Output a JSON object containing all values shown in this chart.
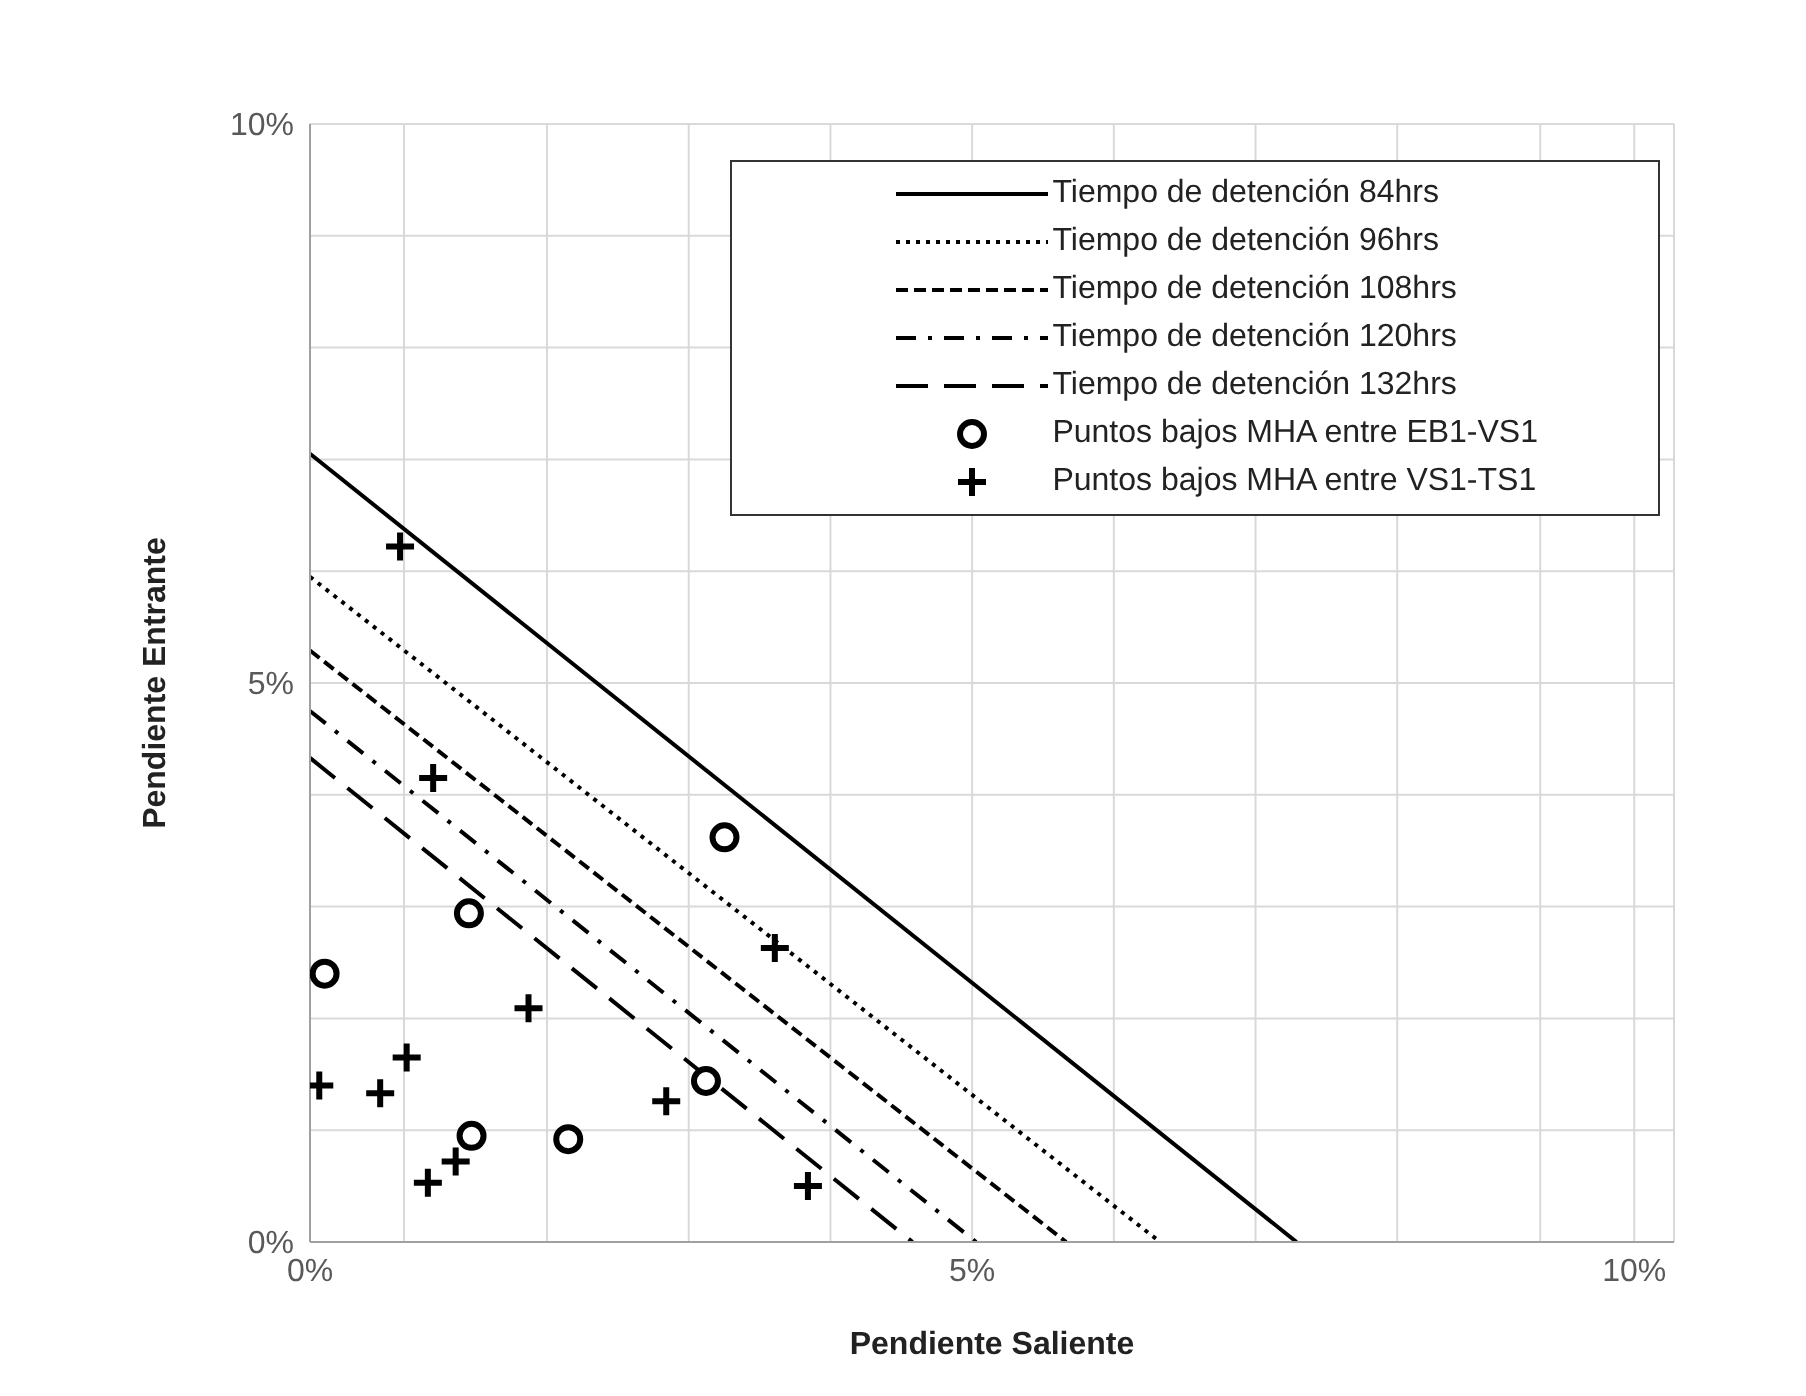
{
  "chart_data": {
    "type": "line",
    "xlabel": "Pendiente Saliente",
    "ylabel": "Pendiente Entrante",
    "xlim": [
      0,
      10.3
    ],
    "xticks": [
      {
        "value": 0,
        "label": "0%"
      },
      {
        "value": 0.71,
        "label": null
      },
      {
        "value": 1.79,
        "label": null
      },
      {
        "value": 2.86,
        "label": null
      },
      {
        "value": 3.93,
        "label": null
      },
      {
        "value": 5,
        "label": "5%"
      },
      {
        "value": 6.07,
        "label": null
      },
      {
        "value": 7.14,
        "label": null
      },
      {
        "value": 8.21,
        "label": null
      },
      {
        "value": 9.29,
        "label": null
      },
      {
        "value": 10,
        "label": "10%"
      }
    ],
    "ylim": [
      0,
      10
    ],
    "yticks": [
      {
        "value": 0,
        "label": "0%"
      },
      {
        "value": 1,
        "label": null
      },
      {
        "value": 2,
        "label": null
      },
      {
        "value": 3,
        "label": null
      },
      {
        "value": 4,
        "label": null
      },
      {
        "value": 5,
        "label": "5%"
      },
      {
        "value": 6,
        "label": null
      },
      {
        "value": 7,
        "label": null
      },
      {
        "value": 8,
        "label": null
      },
      {
        "value": 9,
        "label": null
      },
      {
        "value": 10,
        "label": "10%"
      }
    ],
    "grid": true,
    "legend": "top right",
    "marker": "none",
    "series": [
      {
        "name": "Tiempo de detención 84hrs",
        "color": "#000000",
        "line_style": "solid",
        "x": [
          0,
          7.45
        ],
        "values": [
          7.05,
          0
        ]
      },
      {
        "name": "Tiempo de detención 96hrs",
        "color": "#000000",
        "line_style": "dotted",
        "x": [
          0,
          6.42
        ],
        "values": [
          5.95,
          0
        ]
      },
      {
        "name": "Tiempo de detención 108hrs",
        "color": "#000000",
        "line_style": "dashed",
        "x": [
          0,
          5.71
        ],
        "values": [
          5.29,
          0
        ]
      },
      {
        "name": "Tiempo de detención 120hrs",
        "color": "#000000",
        "line_style": "dashdot",
        "x": [
          0,
          5.03
        ],
        "values": [
          4.75,
          0
        ]
      },
      {
        "name": "Tiempo de detención 132hrs",
        "color": "#000000",
        "line_style": "longdash",
        "x": [
          0,
          4.55
        ],
        "values": [
          4.33,
          0
        ]
      },
      {
        "name": "Puntos bajos MHA entre EB1-VS1",
        "type": "scatter",
        "color": "#000000",
        "marker": "circle",
        "x": [
          3.13,
          1.2,
          0.11,
          2.99,
          1.22,
          1.95
        ],
        "values": [
          3.62,
          2.94,
          2.4,
          1.44,
          0.95,
          0.92
        ]
      },
      {
        "name": "Puntos bajos MHA entre VS1-TS1",
        "type": "scatter",
        "color": "#000000",
        "marker": "cross",
        "x": [
          0.68,
          0.93,
          3.51,
          1.65,
          0.73,
          0.07,
          0.53,
          2.69,
          1.1,
          0.89,
          3.76
        ],
        "values": [
          6.22,
          4.15,
          2.63,
          2.09,
          1.65,
          1.4,
          1.33,
          1.26,
          0.72,
          0.53,
          0.5
        ]
      }
    ]
  }
}
